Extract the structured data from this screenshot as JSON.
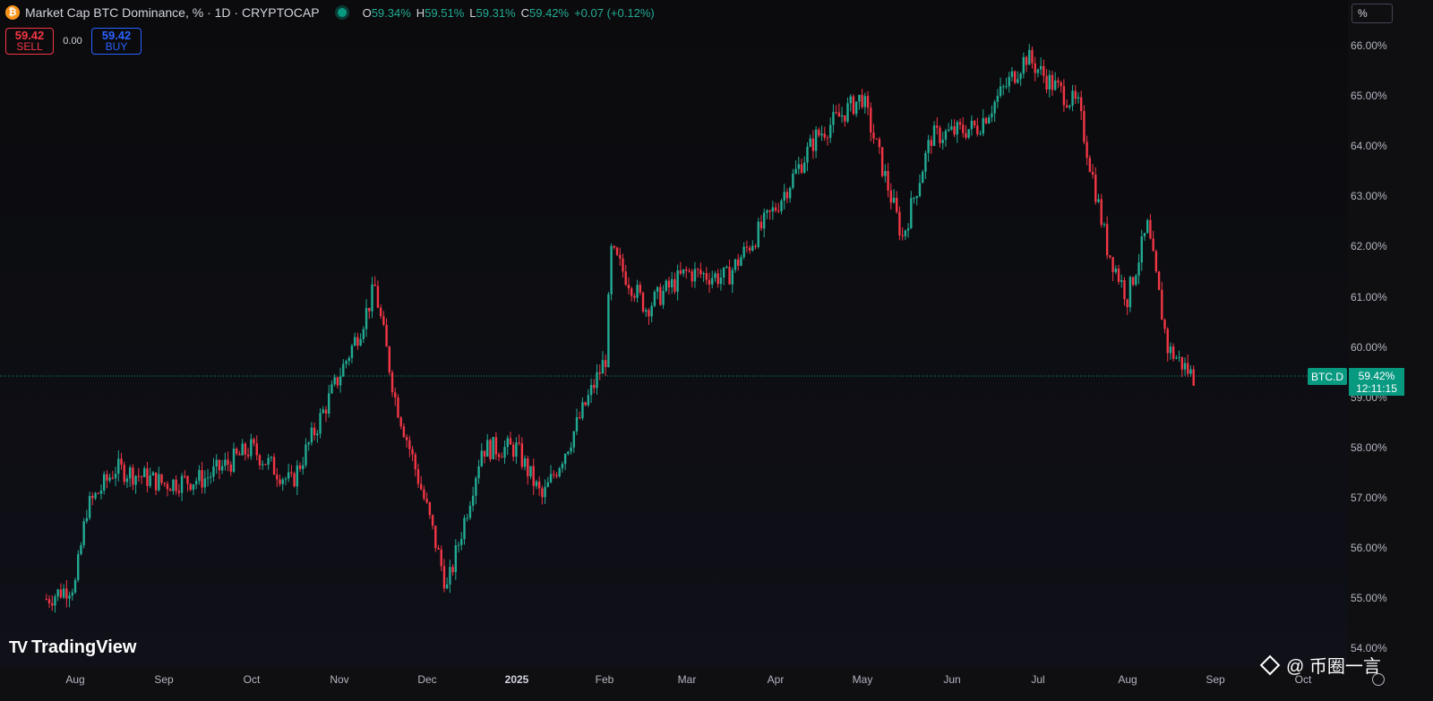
{
  "header": {
    "symbol_icon": "bitcoin-icon",
    "title": "Market Cap BTC Dominance, % · 1D · CRYPTOCAP",
    "status_icon": "market-open-dot-icon",
    "ohlc": {
      "o_label": "O",
      "o": "59.34%",
      "h_label": "H",
      "h": "59.51%",
      "l_label": "L",
      "l": "59.31%",
      "c_label": "C",
      "c": "59.42%",
      "change": "+0.07 (+0.12%)"
    }
  },
  "trade": {
    "sell_price": "59.42",
    "sell_label": "SELL",
    "spread": "0.00",
    "buy_price": "59.42",
    "buy_label": "BUY"
  },
  "scale_button": "%",
  "price_axis": {
    "labels": [
      "66.00%",
      "65.00%",
      "64.00%",
      "63.00%",
      "62.00%",
      "61.00%",
      "60.00%",
      "59.00%",
      "58.00%",
      "57.00%",
      "56.00%",
      "55.00%",
      "54.00%"
    ]
  },
  "last_price": {
    "symbol": "BTC.D",
    "value": "59.42%",
    "countdown": "12:11:15"
  },
  "time_axis": {
    "labels": [
      "Aug",
      "Sep",
      "Oct",
      "Nov",
      "Dec",
      "2025",
      "Feb",
      "Mar",
      "Apr",
      "May",
      "Jun",
      "Jul",
      "Aug",
      "Sep",
      "Oct"
    ]
  },
  "branding": {
    "logo_text": "TradingView",
    "logo_mark": "TV"
  },
  "watermark": {
    "text": "@ 币圈一言"
  },
  "colors": {
    "up": "#22ab94",
    "down": "#f23645",
    "background": "#0f0f12",
    "accent": "#089981"
  },
  "chart_data": {
    "type": "line",
    "title": "Market Cap BTC Dominance, %",
    "xlabel": "",
    "ylabel": "",
    "ylim": [
      54.0,
      66.4
    ],
    "grid": false,
    "legend": "none",
    "x": [
      "2024-07-22",
      "2024-08-01",
      "2024-08-05",
      "2024-08-15",
      "2024-09-01",
      "2024-09-15",
      "2024-10-01",
      "2024-10-15",
      "2024-11-01",
      "2024-11-08",
      "2024-11-13",
      "2024-11-20",
      "2024-12-01",
      "2024-12-08",
      "2024-12-15",
      "2024-12-20",
      "2025-01-01",
      "2025-01-10",
      "2025-01-20",
      "2025-02-01",
      "2025-02-03",
      "2025-02-15",
      "2025-03-01",
      "2025-03-15",
      "2025-04-01",
      "2025-04-15",
      "2025-05-01",
      "2025-05-10",
      "2025-05-15",
      "2025-05-25",
      "2025-06-10",
      "2025-06-27",
      "2025-07-05",
      "2025-07-15",
      "2025-07-25",
      "2025-08-01",
      "2025-08-08",
      "2025-08-15",
      "2025-08-24"
    ],
    "series": [
      {
        "values": [
          55.0,
          55.3,
          56.8,
          57.6,
          57.3,
          57.4,
          58.0,
          57.3,
          59.5,
          60.4,
          61.2,
          59.0,
          56.8,
          55.2,
          56.8,
          58.0,
          58.0,
          57.0,
          58.2,
          59.8,
          61.9,
          60.8,
          61.5,
          61.4,
          62.8,
          64.2,
          65.0,
          63.2,
          62.2,
          64.2,
          64.4,
          65.8,
          65.3,
          64.8,
          62.0,
          61.0,
          62.4,
          60.0,
          59.42
        ]
      }
    ]
  }
}
